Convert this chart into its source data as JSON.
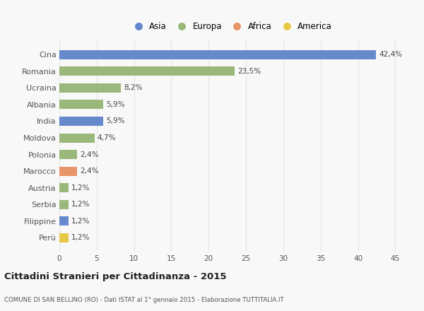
{
  "categories": [
    "Perù",
    "Filippine",
    "Serbia",
    "Austria",
    "Marocco",
    "Polonia",
    "Moldova",
    "India",
    "Albania",
    "Ucraina",
    "Romania",
    "Cina"
  ],
  "values": [
    1.2,
    1.2,
    1.2,
    1.2,
    2.4,
    2.4,
    4.7,
    5.9,
    5.9,
    8.2,
    23.5,
    42.4
  ],
  "labels": [
    "1,2%",
    "1,2%",
    "1,2%",
    "1,2%",
    "2,4%",
    "2,4%",
    "4,7%",
    "5,9%",
    "5,9%",
    "8,2%",
    "23,5%",
    "42,4%"
  ],
  "colors": [
    "#e8c84a",
    "#6688cc",
    "#9ab87a",
    "#9ab87a",
    "#e8956a",
    "#9ab87a",
    "#9ab87a",
    "#6688cc",
    "#9ab87a",
    "#9ab87a",
    "#9ab87a",
    "#6688cc"
  ],
  "legend": [
    {
      "label": "Asia",
      "color": "#6688cc"
    },
    {
      "label": "Europa",
      "color": "#9ab87a"
    },
    {
      "label": "Africa",
      "color": "#e8956a"
    },
    {
      "label": "America",
      "color": "#e8c84a"
    }
  ],
  "xlim": [
    0,
    46
  ],
  "xticks": [
    0,
    5,
    10,
    15,
    20,
    25,
    30,
    35,
    40,
    45
  ],
  "title": "Cittadini Stranieri per Cittadinanza - 2015",
  "subtitle": "COMUNE DI SAN BELLINO (RO) - Dati ISTAT al 1° gennaio 2015 - Elaborazione TUTTITALIA.IT",
  "background_color": "#f8f8f8",
  "grid_color": "#e8e8e8",
  "bar_height": 0.55
}
